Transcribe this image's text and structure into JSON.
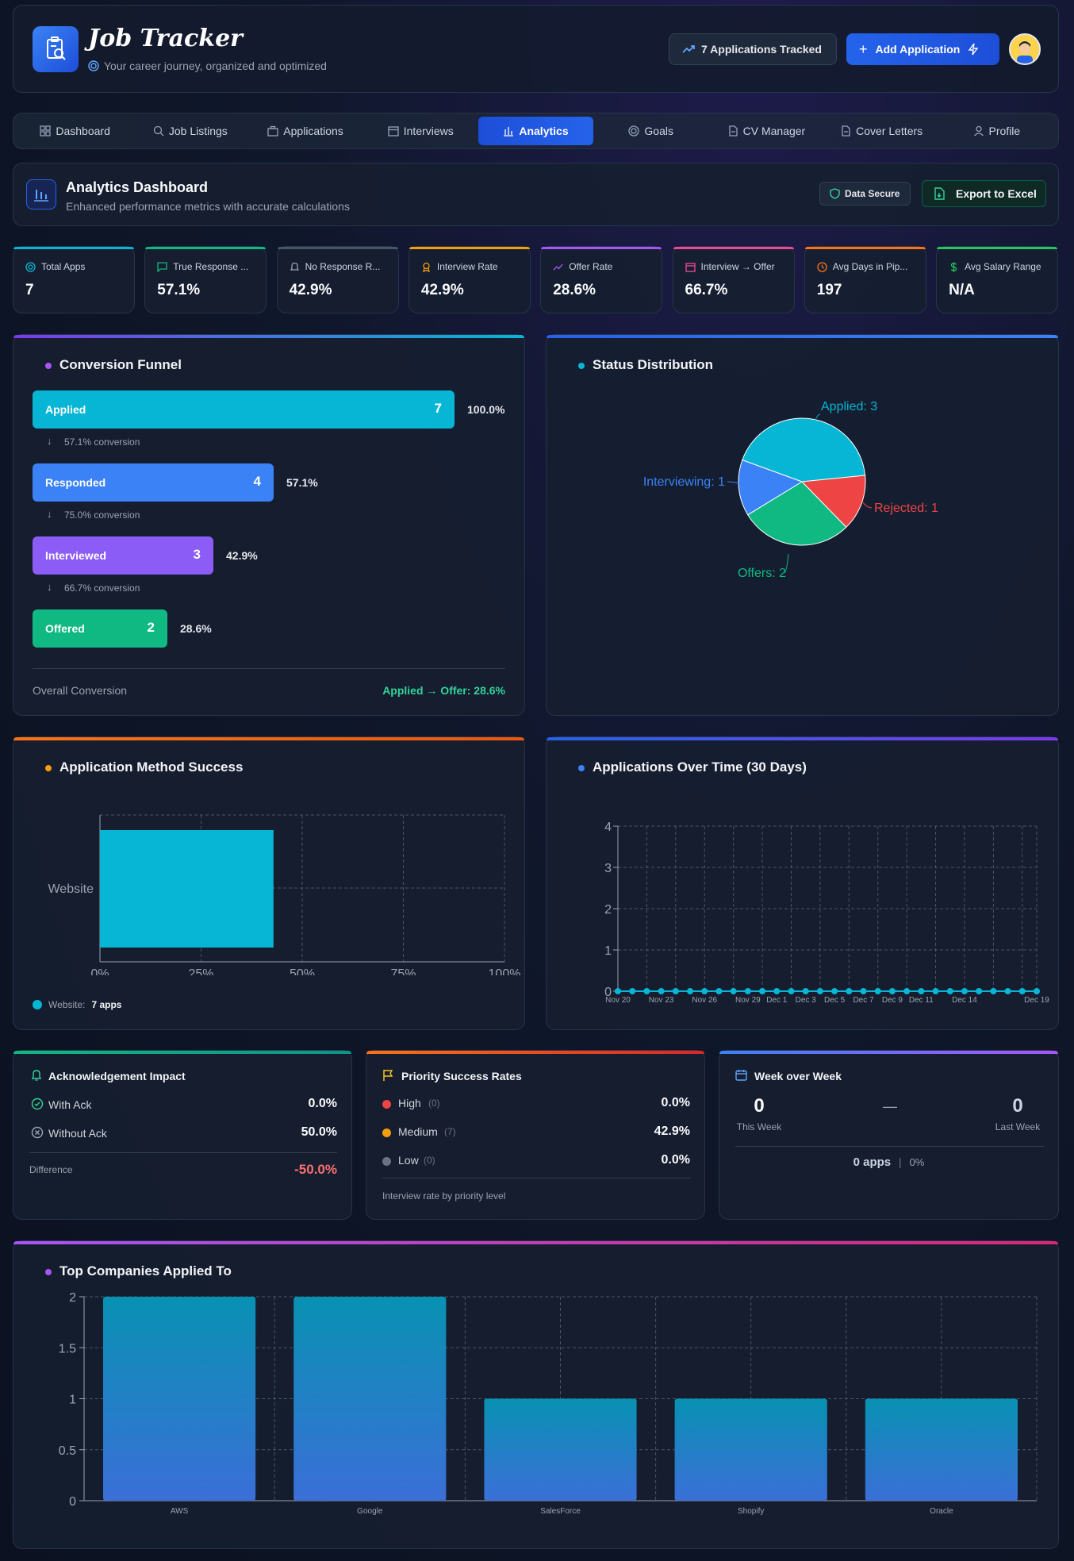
{
  "app": {
    "title": "Job Tracker",
    "subtitle": "Your career journey, organized and optimized",
    "tracked": "7 Applications Tracked",
    "add_label": "Add Application"
  },
  "nav": [
    "Dashboard",
    "Job Listings",
    "Applications",
    "Interviews",
    "Analytics",
    "Goals",
    "CV Manager",
    "Cover Letters",
    "Profile"
  ],
  "analytics": {
    "title": "Analytics Dashboard",
    "subtitle": "Enhanced performance metrics with accurate calculations",
    "secure": "Data Secure",
    "export": "Export to Excel"
  },
  "stats": [
    {
      "label": "Total Apps",
      "value": "7",
      "color": "#06b6d4"
    },
    {
      "label": "True Response ...",
      "value": "57.1%",
      "color": "#10b981"
    },
    {
      "label": "No Response R...",
      "value": "42.9%",
      "color": "#475569"
    },
    {
      "label": "Interview Rate",
      "value": "42.9%",
      "color": "#f59e0b"
    },
    {
      "label": "Offer Rate",
      "value": "28.6%",
      "color": "#a855f7"
    },
    {
      "label": "Interview → Offer",
      "value": "66.7%",
      "color": "#ec4899"
    },
    {
      "label": "Avg Days in Pip...",
      "value": "197",
      "color": "#f97316"
    },
    {
      "label": "Avg Salary Range",
      "value": "N/A",
      "color": "#22c55e"
    }
  ],
  "funnel": {
    "title": "Conversion Funnel",
    "stages": [
      {
        "label": "Applied",
        "count": "7",
        "pct": "100.0%",
        "fraction": 1.0,
        "color": "#06b6d4"
      },
      {
        "label": "Responded",
        "count": "4",
        "pct": "57.1%",
        "fraction": 0.571,
        "color": "#3b82f6"
      },
      {
        "label": "Interviewed",
        "count": "3",
        "pct": "42.9%",
        "fraction": 0.429,
        "color": "#8b5cf6"
      },
      {
        "label": "Offered",
        "count": "2",
        "pct": "28.6%",
        "fraction": 0.286,
        "color": "#10b981"
      }
    ],
    "conversions": [
      "57.1% conversion",
      "75.0% conversion",
      "66.7% conversion"
    ],
    "overall_label": "Overall Conversion",
    "overall_value": "Applied → Offer: 28.6%"
  },
  "status_title": "Status Distribution",
  "method_title": "Application Method Success",
  "method_legend": {
    "name": "Website:",
    "value": "7 apps"
  },
  "time_title": "Applications Over Time (30 Days)",
  "ack": {
    "title": "Acknowledgement Impact",
    "with_label": "With Ack",
    "with_value": "0.0%",
    "without_label": "Without Ack",
    "without_value": "50.0%",
    "diff_label": "Difference",
    "diff_value": "-50.0%"
  },
  "priority": {
    "title": "Priority Success Rates",
    "rows": [
      {
        "label": "High",
        "count": "(0)",
        "value": "0.0%",
        "color": "#ef4444"
      },
      {
        "label": "Medium",
        "count": "(7)",
        "value": "42.9%",
        "color": "#f59e0b"
      },
      {
        "label": "Low",
        "count": "(0)",
        "value": "0.0%",
        "color": "#6b7280"
      }
    ],
    "note": "Interview rate by priority level"
  },
  "week": {
    "title": "Week over Week",
    "this_value": "0",
    "this_label": "This Week",
    "dash": "—",
    "last_value": "0",
    "last_label": "Last Week",
    "apps": "0 apps",
    "sep": "|",
    "pct": "0%"
  },
  "companies_title": "Top Companies Applied To",
  "chart_data": [
    {
      "type": "pie",
      "title": "Status Distribution",
      "slices": [
        {
          "label": "Applied: 3",
          "value": 3,
          "color": "#06b6d4"
        },
        {
          "label": "Rejected: 1",
          "value": 1,
          "color": "#ef4444"
        },
        {
          "label": "Offers: 2",
          "value": 2,
          "color": "#10b981"
        },
        {
          "label": "Interviewing: 1",
          "value": 1,
          "color": "#3b82f6"
        }
      ]
    },
    {
      "type": "bar",
      "orientation": "horizontal",
      "title": "Application Method Success",
      "categories": [
        "Website"
      ],
      "series": [
        {
          "name": "Interview Rate",
          "values": [
            42.9
          ],
          "color": "#06b6d4"
        }
      ],
      "xlim": [
        0,
        100
      ],
      "ticks": [
        "0%",
        "25%",
        "50%",
        "75%",
        "100%"
      ]
    },
    {
      "type": "line",
      "title": "Applications Over Time (30 Days)",
      "x": [
        "Nov 20",
        "Nov 21",
        "Nov 22",
        "Nov 23",
        "Nov 24",
        "Nov 25",
        "Nov 26",
        "Nov 27",
        "Nov 28",
        "Nov 29",
        "Nov 30",
        "Dec 1",
        "Dec 2",
        "Dec 3",
        "Dec 4",
        "Dec 5",
        "Dec 6",
        "Dec 7",
        "Dec 8",
        "Dec 9",
        "Dec 10",
        "Dec 11",
        "Dec 12",
        "Dec 13",
        "Dec 14",
        "Dec 15",
        "Dec 16",
        "Dec 17",
        "Dec 18",
        "Dec 19"
      ],
      "x_tick_labels": [
        "Nov 20",
        "Nov 23",
        "Nov 26",
        "Nov 29",
        "Dec 1",
        "Dec 3",
        "Dec 5",
        "Dec 7",
        "Dec 9",
        "Dec 11",
        "Dec 14",
        "Dec 19"
      ],
      "values": [
        0,
        0,
        0,
        0,
        0,
        0,
        0,
        0,
        0,
        0,
        0,
        0,
        0,
        0,
        0,
        0,
        0,
        0,
        0,
        0,
        0,
        0,
        0,
        0,
        0,
        0,
        0,
        0,
        0,
        0
      ],
      "ylim": [
        0,
        4
      ],
      "yticks": [
        "0",
        "1",
        "2",
        "3",
        "4"
      ],
      "color": "#06b6d4"
    },
    {
      "type": "bar",
      "title": "Top Companies Applied To",
      "categories": [
        "AWS",
        "Google",
        "SalesForce",
        "Shopify",
        "Oracle"
      ],
      "values": [
        2,
        2,
        1,
        1,
        1
      ],
      "ylim": [
        0,
        2
      ],
      "yticks": [
        "0",
        "0.5",
        "1",
        "1.5",
        "2"
      ]
    }
  ]
}
